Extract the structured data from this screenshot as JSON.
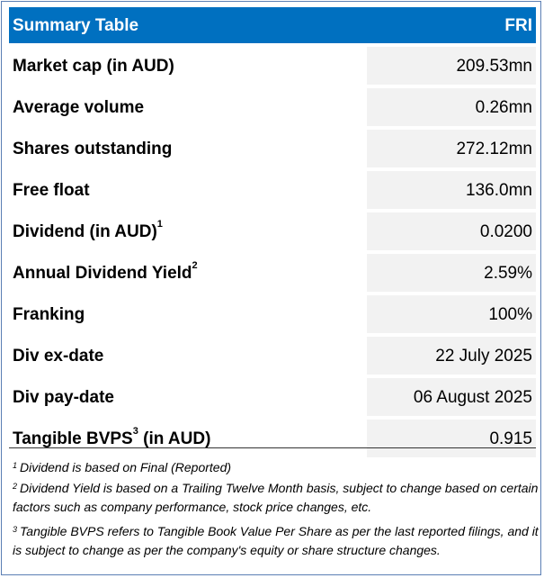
{
  "header": {
    "title": "Summary Table",
    "ticker": "FRI"
  },
  "colors": {
    "header_bg": "#0070c0",
    "value_bg": "#f2f2f2",
    "border": "#5b7fb4"
  },
  "rows": [
    {
      "label": "Market cap (in AUD)",
      "sup": "",
      "value": "209.53mn"
    },
    {
      "label": "Average volume",
      "sup": "",
      "value": "0.26mn"
    },
    {
      "label": "Shares outstanding",
      "sup": "",
      "value": "272.12mn"
    },
    {
      "label": "Free float",
      "sup": "",
      "value": "136.0mn"
    },
    {
      "label": "Dividend (in AUD)",
      "sup": "1",
      "value": "0.0200"
    },
    {
      "label": "Annual Dividend Yield",
      "sup": "2",
      "value": "2.59%"
    },
    {
      "label": "Franking",
      "sup": "",
      "value": "100%"
    },
    {
      "label": "Div ex-date",
      "sup": "",
      "value": "22 July 2025"
    },
    {
      "label": "Div pay-date",
      "sup": "",
      "value": "06 August 2025"
    },
    {
      "label": "Tangible BVPS",
      "sup": "3",
      "label_suffix": " (in AUD)",
      "value": "0.915"
    }
  ],
  "footnotes": [
    {
      "mark": "1",
      "text": "Dividend is based on Final (Reported)"
    },
    {
      "mark": "2",
      "text": "Dividend Yield is based on a Trailing Twelve Month basis, subject to change based on certain factors such as company performance, stock price changes, etc."
    },
    {
      "mark": "3",
      "text": "Tangible BVPS refers to Tangible Book Value Per Share as per the last reported filings, and it is subject to change as per the company's equity or share structure changes."
    }
  ]
}
